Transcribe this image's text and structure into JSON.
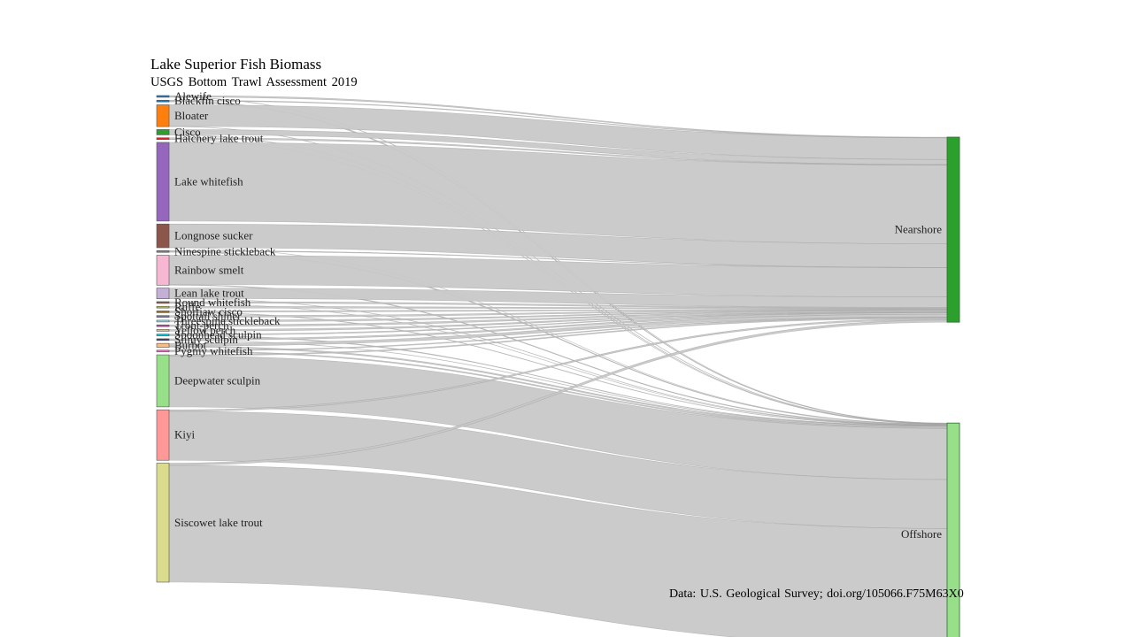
{
  "chart_data": {
    "type": "sankey",
    "title": "Lake Superior Fish Biomass",
    "subtitle": "USGS Bottom Trawl Assessment  2019",
    "caption": "Data: U.S. Geological Survey; doi.org/105066.F75M63X0",
    "link_color": "#c8c8c8",
    "sources": [
      {
        "name": "Alewife",
        "color": "#1f77b4",
        "nearshore": 0.05,
        "offshore": 0.01
      },
      {
        "name": "Blackfin cisco",
        "color": "#1f77b4",
        "nearshore": 0.02,
        "offshore": 0.03
      },
      {
        "name": "Bloater",
        "color": "#ff7f0e",
        "nearshore": 1.78,
        "offshore": 0.02
      },
      {
        "name": "Cisco",
        "color": "#2ca02c",
        "nearshore": 0.42,
        "offshore": 0.02
      },
      {
        "name": "Hatchery lake trout",
        "color": "#d62728",
        "nearshore": 0.05,
        "offshore": 0.01
      },
      {
        "name": "Lake whitefish",
        "color": "#9467bd",
        "nearshore": 6.5,
        "offshore": 0.0
      },
      {
        "name": "Longnose sucker",
        "color": "#8c564b",
        "nearshore": 1.95,
        "offshore": 0.01
      },
      {
        "name": "Ninespine stickleback",
        "color": "#7f7f7f",
        "nearshore": 0.02,
        "offshore": 0.03
      },
      {
        "name": "Rainbow smelt",
        "color": "#f7b6d2",
        "nearshore": 2.42,
        "offshore": 0.05
      },
      {
        "name": "Lean lake trout",
        "color": "#c5b0d5",
        "nearshore": 0.86,
        "offshore": 0.02
      },
      {
        "name": "Round whitefish",
        "color": "#8c564b",
        "nearshore": 0.08,
        "offshore": 0.01
      },
      {
        "name": "Ruffe",
        "color": "#bcbd22",
        "nearshore": 0.05,
        "offshore": 0.0
      },
      {
        "name": "Shortjaw cisco",
        "color": "#8c6d31",
        "nearshore": 0.05,
        "offshore": 0.02
      },
      {
        "name": "Spottail shiner",
        "color": "#6b6ecf",
        "nearshore": 0.05,
        "offshore": 0.0
      },
      {
        "name": "Threespine stickleback",
        "color": "#9edae5",
        "nearshore": 0.03,
        "offshore": 0.0
      },
      {
        "name": "Trout-perch",
        "color": "#a55194",
        "nearshore": 0.1,
        "offshore": 0.0
      },
      {
        "name": "Yellow perch",
        "color": "#e7ba52",
        "nearshore": 0.05,
        "offshore": 0.0
      },
      {
        "name": "Spoonhead sculpin",
        "color": "#17becf",
        "nearshore": 0.03,
        "offshore": 0.02
      },
      {
        "name": "Slimy sculpin",
        "color": "#393b79",
        "nearshore": 0.12,
        "offshore": 0.02
      },
      {
        "name": "Burbot",
        "color": "#ffbb78",
        "nearshore": 0.22,
        "offshore": 0.1
      },
      {
        "name": "Pygmy whitefish",
        "color": "#e377c2",
        "nearshore": 0.06,
        "offshore": 0.08
      },
      {
        "name": "Deepwater sculpin",
        "color": "#98df8a",
        "nearshore": 0.08,
        "offshore": 4.22
      },
      {
        "name": "Kiyi",
        "color": "#ff9896",
        "nearshore": 0.12,
        "offshore": 4.05
      },
      {
        "name": "Siscowet lake trout",
        "color": "#dbdb8d",
        "nearshore": 0.18,
        "offshore": 9.65
      }
    ],
    "targets": [
      {
        "key": "nearshore",
        "name": "Nearshore",
        "color": "#2ca02c"
      },
      {
        "key": "offshore",
        "name": "Offshore",
        "color": "#98df8a"
      }
    ]
  }
}
